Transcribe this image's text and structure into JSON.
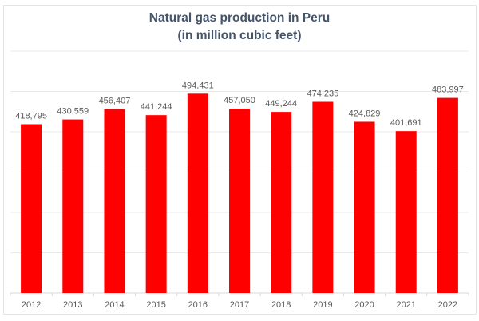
{
  "chart_data": {
    "type": "bar",
    "title": "Natural gas production in Peru",
    "subtitle": "(in million cubic feet)",
    "categories": [
      "2012",
      "2013",
      "2014",
      "2015",
      "2016",
      "2017",
      "2018",
      "2019",
      "2020",
      "2021",
      "2022"
    ],
    "values": [
      418795,
      430559,
      456407,
      441244,
      494431,
      457050,
      449244,
      474235,
      424829,
      401691,
      483997
    ],
    "data_labels": [
      "418,795",
      "430,559",
      "456,407",
      "441,244",
      "494,431",
      "457,050",
      "449,244",
      "474,235",
      "424,829",
      "401,691",
      "483,997"
    ],
    "ylim": [
      0,
      600000
    ],
    "ygrid_step": 100000,
    "grid": true,
    "y_axis_labels_visible": false,
    "colors": {
      "bar": "#ff0000",
      "title": "#44546a",
      "label": "#595959",
      "grid": "#e8e8e8"
    }
  }
}
